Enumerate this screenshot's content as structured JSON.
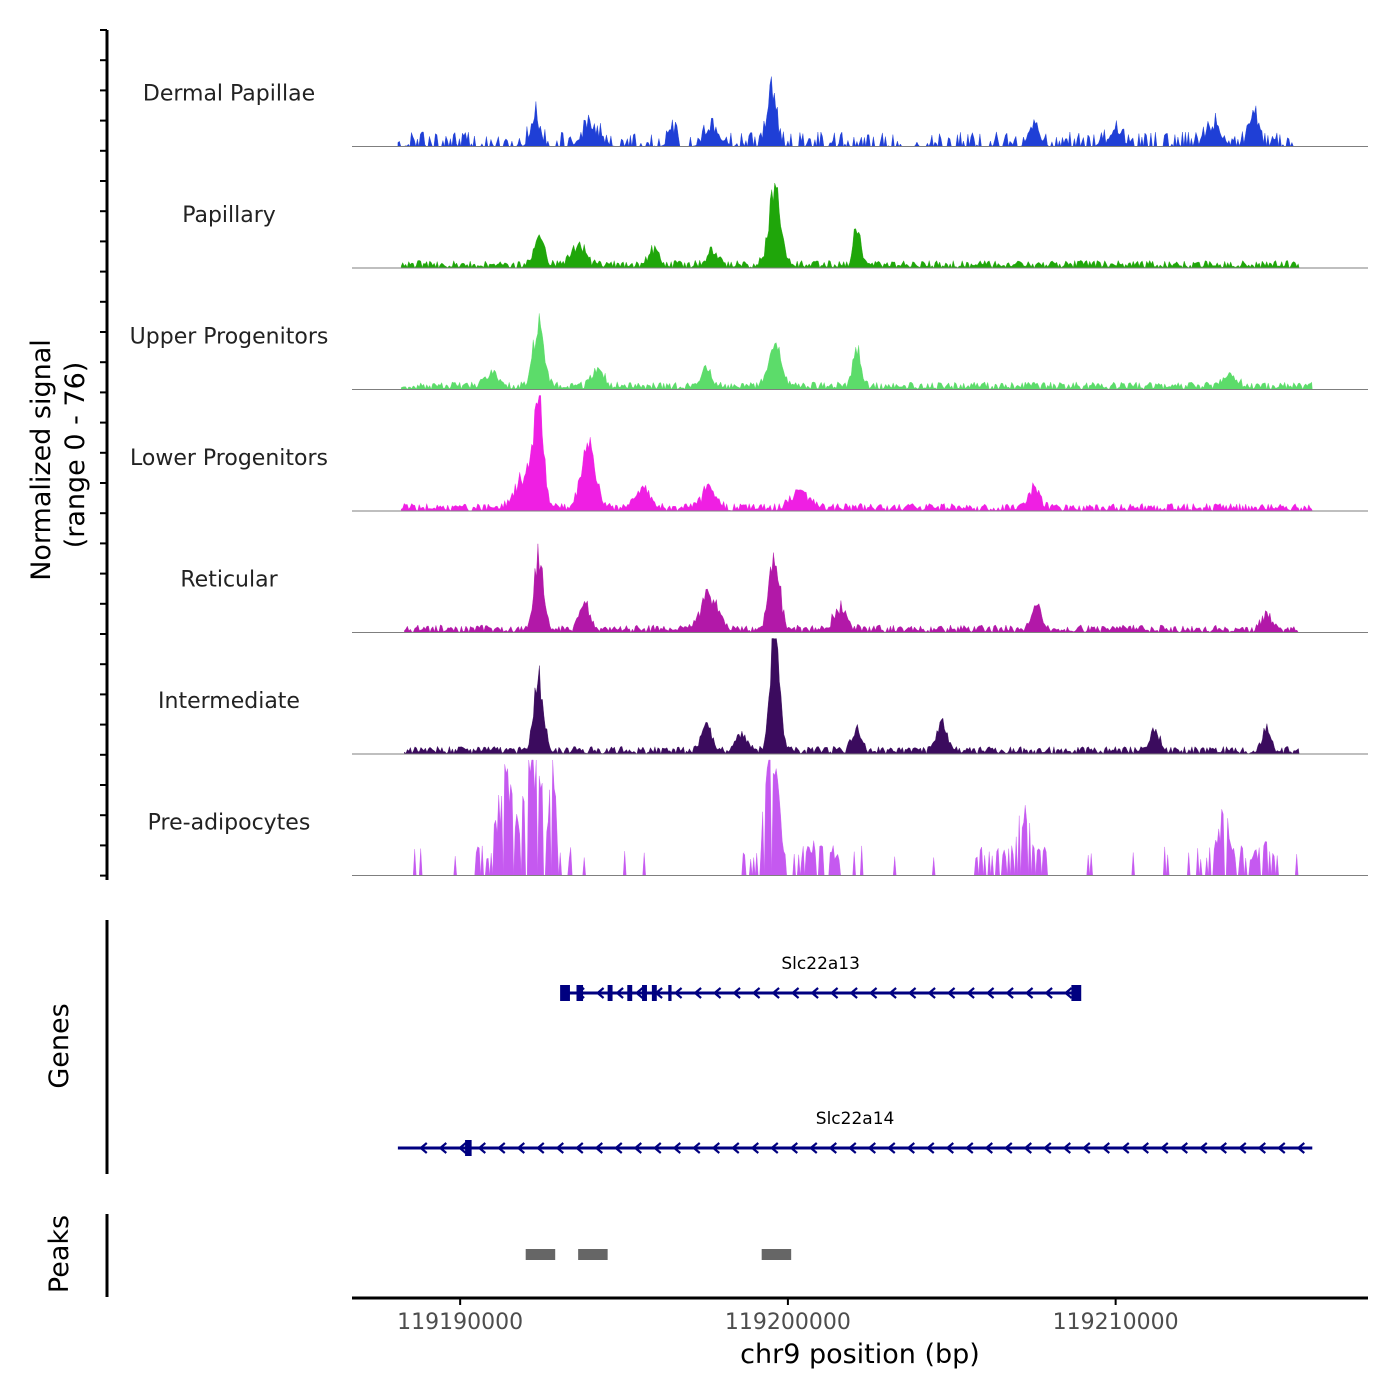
{
  "chart_data": {
    "type": "area",
    "title": "",
    "xlabel": "chr9 position (bp)",
    "ylabel_line1": "Normalized signal",
    "ylabel_line2": "(range 0 - 76)",
    "genes_label": "Genes",
    "peaks_label": "Peaks",
    "xlim": [
      119186700,
      119217700
    ],
    "ylim": [
      0,
      76
    ],
    "x_ticks": [
      119190000,
      119200000,
      119210000
    ],
    "x_tick_labels": [
      "119190000",
      "119200000",
      "119210000"
    ],
    "tracks": [
      {
        "name": "Dermal Papillae",
        "color": "#1f3fd6",
        "style": "spiky",
        "baseline": 6,
        "seed": 11,
        "range": [
          119188100,
          119215600
        ],
        "gaps": [
          [
            119196700,
            119197000
          ]
        ],
        "peaks": [
          [
            119192300,
            20,
            200
          ],
          [
            119194000,
            13,
            350
          ],
          [
            119196500,
            10,
            200
          ],
          [
            119197700,
            13,
            300
          ],
          [
            119199500,
            40,
            200
          ],
          [
            119207500,
            16,
            200
          ],
          [
            119210000,
            11,
            250
          ],
          [
            119213000,
            15,
            300
          ],
          [
            119214200,
            20,
            200
          ]
        ]
      },
      {
        "name": "Papillary",
        "color": "#1fa60a",
        "style": "smooth",
        "baseline": 5,
        "seed": 23,
        "range": [
          119188200,
          119215600
        ],
        "gaps": [],
        "peaks": [
          [
            119192400,
            21,
            200
          ],
          [
            119193600,
            14,
            300
          ],
          [
            119195900,
            12,
            200
          ],
          [
            119199600,
            55,
            250
          ],
          [
            119202100,
            30,
            140
          ],
          [
            119197700,
            9,
            250
          ]
        ]
      },
      {
        "name": "Upper Progenitors",
        "color": "#5cdc6a",
        "style": "smooth",
        "baseline": 5,
        "seed": 37,
        "range": [
          119188200,
          119216000
        ],
        "gaps": [],
        "peaks": [
          [
            119192400,
            48,
            220
          ],
          [
            119191000,
            10,
            300
          ],
          [
            119194200,
            12,
            250
          ],
          [
            119197500,
            12,
            200
          ],
          [
            119199600,
            32,
            260
          ],
          [
            119202100,
            28,
            160
          ],
          [
            119213500,
            8,
            300
          ]
        ]
      },
      {
        "name": "Lower Progenitors",
        "color": "#ef1fe3",
        "style": "smooth",
        "baseline": 5,
        "seed": 41,
        "range": [
          119188200,
          119216000
        ],
        "gaps": [],
        "peaks": [
          [
            119192400,
            72,
            200
          ],
          [
            119193900,
            40,
            320
          ],
          [
            119192000,
            24,
            400
          ],
          [
            119195600,
            16,
            300
          ],
          [
            119197600,
            14,
            300
          ],
          [
            119200400,
            12,
            400
          ],
          [
            119207500,
            15,
            250
          ]
        ]
      },
      {
        "name": "Reticular",
        "color": "#b218a8",
        "style": "smooth",
        "baseline": 5,
        "seed": 53,
        "range": [
          119188300,
          119215600
        ],
        "gaps": [],
        "peaks": [
          [
            119192400,
            50,
            200
          ],
          [
            119193800,
            20,
            220
          ],
          [
            119197600,
            25,
            350
          ],
          [
            119199600,
            54,
            220
          ],
          [
            119201600,
            16,
            280
          ],
          [
            119207600,
            18,
            200
          ],
          [
            119214600,
            12,
            200
          ]
        ]
      },
      {
        "name": "Intermediate",
        "color": "#3b0b5e",
        "style": "smooth",
        "baseline": 5,
        "seed": 61,
        "range": [
          119188300,
          119215600
        ],
        "gaps": [],
        "peaks": [
          [
            119192400,
            50,
            200
          ],
          [
            119197500,
            20,
            200
          ],
          [
            119199600,
            88,
            200
          ],
          [
            119198600,
            14,
            200
          ],
          [
            119204700,
            22,
            200
          ],
          [
            119202100,
            14,
            200
          ],
          [
            119211200,
            14,
            200
          ],
          [
            119214600,
            16,
            200
          ]
        ]
      },
      {
        "name": "Pre-adipocytes",
        "color": "#c559f0",
        "style": "sparse",
        "baseline": 0,
        "seed": 77,
        "range": [
          119188200,
          119215600
        ],
        "gaps": [],
        "peaks": [
          [
            119191400,
            75,
            450
          ],
          [
            119192200,
            112,
            400
          ],
          [
            119192800,
            78,
            200
          ],
          [
            119199500,
            100,
            300
          ],
          [
            119200800,
            25,
            400
          ],
          [
            119207200,
            50,
            400
          ],
          [
            119213300,
            48,
            300
          ],
          [
            119214500,
            30,
            200
          ]
        ]
      }
    ],
    "genes": [
      {
        "name": "Slc22a13",
        "strand": "-",
        "start": 119193100,
        "end": 119208900,
        "exons": [
          [
            119193050,
            119193350
          ],
          [
            119193550,
            119193750
          ],
          [
            119194500,
            119194650
          ],
          [
            119195100,
            119195250
          ],
          [
            119195550,
            119195700
          ],
          [
            119195850,
            119196000
          ],
          [
            119196350,
            119196450
          ],
          [
            119208650,
            119208950
          ]
        ]
      },
      {
        "name": "Slc22a14",
        "strand": "-",
        "start": 119188100,
        "end": 119216000,
        "exons": [
          [
            119190150,
            119190350
          ]
        ]
      }
    ],
    "peaks": [
      {
        "start": 119192000,
        "end": 119192900
      },
      {
        "start": 119193600,
        "end": 119194500
      },
      {
        "start": 119199200,
        "end": 119200100
      }
    ]
  }
}
